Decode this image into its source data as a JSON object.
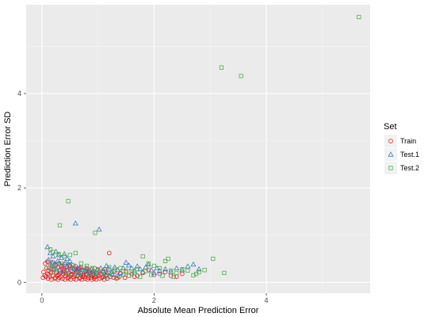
{
  "chart_data": {
    "type": "scatter",
    "xlabel": "Absolute Mean Prediction Error",
    "ylabel": "Prediction Error SD",
    "xlim": [
      -0.28,
      5.85
    ],
    "ylim": [
      -0.23,
      5.88
    ],
    "x_ticks": [
      0,
      2,
      4
    ],
    "y_ticks": [
      0,
      2,
      4
    ],
    "x_tick_labels": [
      "0",
      "2",
      "4"
    ],
    "y_tick_labels": [
      "0",
      "2",
      "4"
    ],
    "grid": true,
    "legend": {
      "title": "Set",
      "position": "right",
      "entries": [
        {
          "label": "Train",
          "shape": "circle",
          "color": "#e41a1c"
        },
        {
          "label": "Test.1",
          "shape": "triangle",
          "color": "#377eb8"
        },
        {
          "label": "Test.2",
          "shape": "square",
          "color": "#4daf4a"
        }
      ]
    },
    "series": [
      {
        "name": "Train",
        "shape": "circle",
        "color": "#e41a1c",
        "points": [
          [
            0.02,
            0.1
          ],
          [
            0.05,
            0.15
          ],
          [
            0.08,
            0.3
          ],
          [
            0.1,
            0.18
          ],
          [
            0.12,
            0.25
          ],
          [
            0.14,
            0.12
          ],
          [
            0.16,
            0.22
          ],
          [
            0.18,
            0.35
          ],
          [
            0.2,
            0.14
          ],
          [
            0.22,
            0.28
          ],
          [
            0.24,
            0.1
          ],
          [
            0.26,
            0.2
          ],
          [
            0.28,
            0.32
          ],
          [
            0.3,
            0.16
          ],
          [
            0.32,
            0.24
          ],
          [
            0.34,
            0.12
          ],
          [
            0.36,
            0.3
          ],
          [
            0.38,
            0.18
          ],
          [
            0.4,
            0.22
          ],
          [
            0.42,
            0.14
          ],
          [
            0.44,
            0.26
          ],
          [
            0.46,
            0.1
          ],
          [
            0.48,
            0.2
          ],
          [
            0.5,
            0.34
          ],
          [
            0.52,
            0.16
          ],
          [
            0.54,
            0.24
          ],
          [
            0.56,
            0.12
          ],
          [
            0.58,
            0.28
          ],
          [
            0.6,
            0.18
          ],
          [
            0.62,
            0.22
          ],
          [
            0.64,
            0.14
          ],
          [
            0.66,
            0.3
          ],
          [
            0.68,
            0.1
          ],
          [
            0.7,
            0.2
          ],
          [
            0.72,
            0.26
          ],
          [
            0.74,
            0.16
          ],
          [
            0.76,
            0.12
          ],
          [
            0.78,
            0.24
          ],
          [
            0.8,
            0.18
          ],
          [
            0.82,
            0.28
          ],
          [
            0.84,
            0.14
          ],
          [
            0.86,
            0.2
          ],
          [
            0.88,
            0.1
          ],
          [
            0.9,
            0.22
          ],
          [
            0.92,
            0.16
          ],
          [
            0.94,
            0.3
          ],
          [
            0.96,
            0.12
          ],
          [
            0.98,
            0.2
          ],
          [
            1.0,
            0.26
          ],
          [
            1.02,
            0.14
          ],
          [
            1.05,
            0.18
          ],
          [
            1.08,
            0.22
          ],
          [
            1.1,
            0.12
          ],
          [
            1.12,
            0.28
          ],
          [
            1.15,
            0.16
          ],
          [
            1.18,
            0.2
          ],
          [
            1.2,
            0.62
          ],
          [
            1.25,
            0.18
          ],
          [
            1.3,
            0.24
          ],
          [
            1.35,
            0.14
          ],
          [
            1.4,
            0.2
          ],
          [
            1.45,
            0.16
          ],
          [
            1.5,
            0.22
          ],
          [
            1.6,
            0.18
          ],
          [
            1.7,
            0.14
          ],
          [
            1.8,
            0.2
          ],
          [
            1.9,
            0.26
          ],
          [
            2.0,
            0.16
          ],
          [
            2.1,
            0.18
          ],
          [
            2.2,
            0.22
          ],
          [
            2.3,
            0.14
          ],
          [
            2.4,
            0.12
          ],
          [
            2.5,
            0.18
          ],
          [
            0.06,
            0.4
          ],
          [
            0.1,
            0.44
          ],
          [
            0.15,
            0.38
          ],
          [
            0.2,
            0.42
          ],
          [
            0.25,
            0.36
          ],
          [
            0.3,
            0.4
          ],
          [
            0.35,
            0.34
          ],
          [
            0.4,
            0.38
          ],
          [
            0.45,
            0.32
          ],
          [
            0.5,
            0.36
          ],
          [
            0.55,
            0.3
          ],
          [
            0.6,
            0.34
          ],
          [
            0.65,
            0.28
          ],
          [
            0.7,
            0.32
          ],
          [
            0.75,
            0.26
          ],
          [
            0.8,
            0.3
          ],
          [
            0.85,
            0.24
          ],
          [
            0.03,
            0.22
          ],
          [
            0.07,
            0.12
          ],
          [
            0.11,
            0.08
          ],
          [
            0.13,
            0.16
          ],
          [
            0.17,
            0.06
          ],
          [
            0.19,
            0.26
          ],
          [
            0.23,
            0.08
          ],
          [
            0.27,
            0.14
          ],
          [
            0.29,
            0.06
          ],
          [
            0.31,
            0.1
          ],
          [
            0.33,
            0.2
          ],
          [
            0.37,
            0.08
          ],
          [
            0.39,
            0.26
          ],
          [
            0.41,
            0.06
          ],
          [
            0.43,
            0.18
          ],
          [
            0.47,
            0.08
          ],
          [
            0.49,
            0.12
          ],
          [
            0.51,
            0.06
          ],
          [
            0.53,
            0.18
          ],
          [
            0.57,
            0.08
          ],
          [
            0.59,
            0.14
          ],
          [
            0.61,
            0.06
          ],
          [
            0.63,
            0.26
          ],
          [
            0.67,
            0.08
          ],
          [
            0.69,
            0.16
          ],
          [
            0.71,
            0.06
          ],
          [
            0.73,
            0.12
          ],
          [
            0.77,
            0.08
          ],
          [
            0.79,
            0.16
          ],
          [
            0.81,
            0.06
          ],
          [
            0.83,
            0.1
          ],
          [
            0.87,
            0.14
          ],
          [
            0.89,
            0.06
          ],
          [
            0.91,
            0.18
          ],
          [
            0.93,
            0.08
          ],
          [
            0.95,
            0.12
          ],
          [
            0.97,
            0.06
          ],
          [
            0.99,
            0.16
          ],
          [
            1.03,
            0.08
          ],
          [
            1.07,
            0.1
          ],
          [
            1.11,
            0.06
          ],
          [
            1.14,
            0.14
          ],
          [
            1.17,
            0.08
          ],
          [
            1.22,
            0.12
          ],
          [
            1.28,
            0.1
          ],
          [
            1.33,
            0.08
          ],
          [
            1.38,
            0.12
          ],
          [
            1.48,
            0.1
          ],
          [
            1.55,
            0.14
          ],
          [
            1.65,
            0.12
          ]
        ]
      },
      {
        "name": "Test.1",
        "shape": "triangle",
        "color": "#377eb8",
        "points": [
          [
            0.1,
            0.75
          ],
          [
            0.15,
            0.62
          ],
          [
            0.2,
            0.55
          ],
          [
            0.25,
            0.65
          ],
          [
            0.3,
            0.58
          ],
          [
            0.35,
            0.52
          ],
          [
            0.4,
            0.6
          ],
          [
            0.45,
            0.5
          ],
          [
            0.5,
            0.45
          ],
          [
            0.6,
            1.25
          ],
          [
            1.02,
            1.12
          ],
          [
            0.12,
            0.48
          ],
          [
            0.18,
            0.42
          ],
          [
            0.22,
            0.38
          ],
          [
            0.28,
            0.45
          ],
          [
            0.32,
            0.4
          ],
          [
            0.38,
            0.35
          ],
          [
            0.42,
            0.42
          ],
          [
            0.48,
            0.36
          ],
          [
            0.52,
            0.3
          ],
          [
            0.58,
            0.34
          ],
          [
            0.62,
            0.28
          ],
          [
            0.68,
            0.32
          ],
          [
            0.72,
            0.26
          ],
          [
            0.78,
            0.3
          ],
          [
            0.82,
            0.24
          ],
          [
            0.88,
            0.28
          ],
          [
            0.92,
            0.22
          ],
          [
            0.98,
            0.26
          ],
          [
            1.05,
            0.3
          ],
          [
            1.1,
            0.24
          ],
          [
            1.15,
            0.35
          ],
          [
            1.2,
            0.28
          ],
          [
            1.25,
            0.22
          ],
          [
            1.3,
            0.32
          ],
          [
            1.35,
            0.26
          ],
          [
            1.4,
            0.2
          ],
          [
            1.45,
            0.3
          ],
          [
            1.5,
            0.42
          ],
          [
            1.55,
            0.36
          ],
          [
            1.6,
            0.3
          ],
          [
            1.65,
            0.24
          ],
          [
            1.7,
            0.34
          ],
          [
            1.75,
            0.28
          ],
          [
            1.8,
            0.22
          ],
          [
            1.85,
            0.32
          ],
          [
            1.9,
            0.38
          ],
          [
            1.95,
            0.26
          ],
          [
            2.0,
            0.2
          ],
          [
            2.05,
            0.3
          ],
          [
            2.1,
            0.24
          ],
          [
            2.2,
            0.28
          ],
          [
            2.3,
            0.22
          ],
          [
            2.4,
            0.3
          ],
          [
            2.5,
            0.26
          ],
          [
            2.6,
            0.34
          ],
          [
            2.7,
            0.38
          ],
          [
            2.8,
            0.28
          ],
          [
            0.16,
            0.3
          ],
          [
            0.26,
            0.28
          ],
          [
            0.36,
            0.24
          ],
          [
            0.46,
            0.26
          ],
          [
            0.56,
            0.22
          ],
          [
            0.66,
            0.2
          ],
          [
            0.76,
            0.22
          ],
          [
            0.86,
            0.18
          ],
          [
            0.96,
            0.2
          ],
          [
            1.06,
            0.18
          ],
          [
            1.16,
            0.2
          ],
          [
            1.26,
            0.16
          ]
        ]
      },
      {
        "name": "Test.2",
        "shape": "square",
        "color": "#4daf4a",
        "points": [
          [
            5.65,
            5.62
          ],
          [
            3.2,
            4.55
          ],
          [
            3.55,
            4.37
          ],
          [
            0.47,
            1.72
          ],
          [
            0.32,
            1.21
          ],
          [
            0.95,
            1.05
          ],
          [
            0.15,
            0.7
          ],
          [
            0.2,
            0.64
          ],
          [
            0.3,
            0.6
          ],
          [
            0.4,
            0.55
          ],
          [
            0.5,
            0.58
          ],
          [
            0.6,
            0.62
          ],
          [
            0.7,
            0.4
          ],
          [
            0.8,
            0.35
          ],
          [
            0.9,
            0.3
          ],
          [
            1.0,
            0.28
          ],
          [
            1.1,
            0.25
          ],
          [
            1.2,
            0.32
          ],
          [
            1.3,
            0.28
          ],
          [
            1.4,
            0.3
          ],
          [
            1.5,
            0.25
          ],
          [
            1.6,
            0.22
          ],
          [
            1.7,
            0.28
          ],
          [
            1.8,
            0.55
          ],
          [
            1.9,
            0.4
          ],
          [
            2.0,
            0.35
          ],
          [
            2.1,
            0.3
          ],
          [
            2.2,
            0.45
          ],
          [
            2.25,
            0.5
          ],
          [
            2.3,
            0.25
          ],
          [
            2.4,
            0.2
          ],
          [
            2.5,
            0.28
          ],
          [
            2.6,
            0.25
          ],
          [
            2.7,
            0.15
          ],
          [
            2.8,
            0.22
          ],
          [
            2.9,
            0.26
          ],
          [
            3.05,
            0.5
          ],
          [
            3.25,
            0.2
          ],
          [
            2.75,
            0.18
          ],
          [
            2.35,
            0.12
          ],
          [
            2.15,
            0.14
          ],
          [
            1.95,
            0.16
          ],
          [
            1.75,
            0.12
          ],
          [
            1.55,
            0.14
          ],
          [
            1.35,
            0.1
          ],
          [
            1.15,
            0.12
          ],
          [
            0.85,
            0.14
          ],
          [
            0.65,
            0.16
          ],
          [
            0.45,
            0.2
          ],
          [
            0.25,
            0.24
          ],
          [
            0.12,
            0.3
          ],
          [
            0.22,
            0.34
          ],
          [
            0.35,
            0.4
          ],
          [
            0.55,
            0.36
          ],
          [
            0.75,
            0.26
          ],
          [
            0.95,
            0.2
          ],
          [
            1.25,
            0.18
          ],
          [
            1.45,
            0.16
          ],
          [
            1.65,
            0.2
          ],
          [
            1.85,
            0.24
          ]
        ]
      }
    ]
  }
}
